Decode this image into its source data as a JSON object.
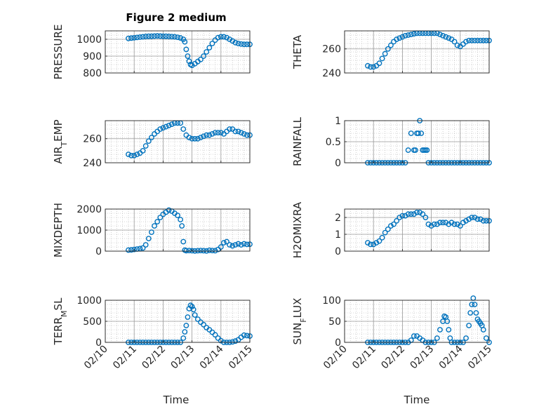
{
  "figure_title": "Figure 2 medium",
  "chart_data": [
    {
      "type": "scatter",
      "ylabel": "PRESSURE",
      "ylim": [
        800,
        1050
      ],
      "yticks": [
        800,
        900,
        1000
      ],
      "xlim": [
        0,
        5
      ],
      "xticks": [
        "02/10",
        "02/11",
        "02/12",
        "02/13",
        "02/14",
        "02/15"
      ],
      "grid": true,
      "marker": "circle-open",
      "series": [
        {
          "x": [
            0.8,
            0.9,
            1.0,
            1.1,
            1.2,
            1.3,
            1.4,
            1.5,
            1.6,
            1.7,
            1.8,
            1.9,
            2.0,
            2.1,
            2.2,
            2.3,
            2.4,
            2.5,
            2.6,
            2.7,
            2.75,
            2.8,
            2.85,
            2.9,
            2.95,
            3.0,
            3.1,
            3.2,
            3.3,
            3.4,
            3.5,
            3.6,
            3.7,
            3.8,
            3.9,
            4.0,
            4.1,
            4.2,
            4.3,
            4.4,
            4.5,
            4.6,
            4.7,
            4.8,
            4.9,
            5.0
          ],
          "y": [
            1005,
            1007,
            1009,
            1011,
            1013,
            1015,
            1017,
            1018,
            1018,
            1019,
            1020,
            1019,
            1018,
            1018,
            1017,
            1016,
            1015,
            1012,
            1008,
            1000,
            985,
            940,
            900,
            870,
            850,
            845,
            855,
            868,
            880,
            900,
            925,
            950,
            975,
            995,
            1010,
            1015,
            1015,
            1010,
            1000,
            990,
            980,
            975,
            972,
            970,
            970,
            970
          ]
        }
      ]
    },
    {
      "type": "scatter",
      "ylabel": "THETA",
      "ylim": [
        240,
        275
      ],
      "yticks": [
        240,
        260
      ],
      "xlim": [
        0,
        5
      ],
      "xticks": [
        "02/10",
        "02/11",
        "02/12",
        "02/13",
        "02/14",
        "02/15"
      ],
      "grid": true,
      "marker": "circle-open",
      "series": [
        {
          "x": [
            0.8,
            0.9,
            1.0,
            1.1,
            1.2,
            1.3,
            1.4,
            1.5,
            1.6,
            1.7,
            1.8,
            1.9,
            2.0,
            2.1,
            2.2,
            2.3,
            2.4,
            2.5,
            2.6,
            2.7,
            2.8,
            2.9,
            3.0,
            3.1,
            3.2,
            3.3,
            3.4,
            3.5,
            3.6,
            3.7,
            3.8,
            3.9,
            4.0,
            4.1,
            4.2,
            4.3,
            4.4,
            4.5,
            4.6,
            4.7,
            4.8,
            4.9,
            5.0
          ],
          "y": [
            246,
            245,
            245,
            246,
            248,
            252,
            256,
            260,
            263,
            266,
            268,
            269,
            270,
            271,
            271.5,
            272,
            272.5,
            273,
            273,
            273,
            273,
            273,
            273,
            273,
            273,
            272,
            271,
            270,
            269,
            268,
            266,
            263,
            262,
            264,
            266,
            267,
            267,
            267,
            267,
            267,
            267,
            267,
            267
          ]
        }
      ]
    },
    {
      "type": "scatter",
      "ylabel": "AIR_TEMP",
      "ylim": [
        240,
        275
      ],
      "yticks": [
        240,
        260
      ],
      "xlim": [
        0,
        5
      ],
      "xticks": [
        "02/10",
        "02/11",
        "02/12",
        "02/13",
        "02/14",
        "02/15"
      ],
      "grid": true,
      "marker": "circle-open",
      "series": [
        {
          "x": [
            0.8,
            0.9,
            1.0,
            1.1,
            1.2,
            1.3,
            1.4,
            1.5,
            1.6,
            1.7,
            1.8,
            1.9,
            2.0,
            2.1,
            2.2,
            2.3,
            2.4,
            2.5,
            2.6,
            2.7,
            2.8,
            2.9,
            3.0,
            3.1,
            3.2,
            3.3,
            3.4,
            3.5,
            3.6,
            3.7,
            3.8,
            3.9,
            4.0,
            4.1,
            4.2,
            4.3,
            4.4,
            4.5,
            4.6,
            4.7,
            4.8,
            4.9,
            5.0
          ],
          "y": [
            247,
            246,
            246,
            247,
            248,
            250,
            254,
            258,
            261,
            264,
            266,
            268,
            269,
            270,
            271,
            272,
            273,
            273,
            273,
            268,
            263,
            261,
            260,
            260,
            260,
            261,
            262,
            263,
            263,
            264,
            265,
            265,
            265,
            264,
            266,
            268,
            268,
            266,
            266,
            265,
            264,
            263,
            263
          ]
        }
      ]
    },
    {
      "type": "scatter",
      "ylabel": "RAINFALL",
      "ylim": [
        0,
        1
      ],
      "yticks": [
        0,
        0.5,
        1
      ],
      "xlim": [
        0,
        5
      ],
      "xticks": [
        "02/10",
        "02/11",
        "02/12",
        "02/13",
        "02/14",
        "02/15"
      ],
      "grid": true,
      "marker": "circle-open",
      "series": [
        {
          "x": [
            0.8,
            0.9,
            1.0,
            1.1,
            1.2,
            1.3,
            1.4,
            1.5,
            1.6,
            1.7,
            1.8,
            1.9,
            2.0,
            2.1,
            2.2,
            2.3,
            2.4,
            2.45,
            2.5,
            2.55,
            2.6,
            2.65,
            2.7,
            2.75,
            2.8,
            2.85,
            2.9,
            3.0,
            3.1,
            3.2,
            3.3,
            3.4,
            3.5,
            3.6,
            3.7,
            3.8,
            3.9,
            4.0,
            4.1,
            4.2,
            4.3,
            4.4,
            4.5,
            4.6,
            4.7,
            4.8,
            4.9,
            5.0
          ],
          "y": [
            0,
            0,
            0,
            0,
            0,
            0,
            0,
            0,
            0,
            0,
            0,
            0,
            0,
            0,
            0.3,
            0.7,
            0.3,
            0.3,
            0.7,
            0.7,
            1.0,
            0.7,
            0.3,
            0.3,
            0.3,
            0.3,
            0,
            0,
            0,
            0,
            0,
            0,
            0,
            0,
            0,
            0,
            0,
            0,
            0,
            0,
            0,
            0,
            0,
            0,
            0,
            0,
            0,
            0
          ]
        }
      ]
    },
    {
      "type": "scatter",
      "ylabel": "MIXDEPTH",
      "ylim": [
        0,
        2000
      ],
      "yticks": [
        0,
        1000,
        2000
      ],
      "xlim": [
        0,
        5
      ],
      "xticks": [
        "02/10",
        "02/11",
        "02/12",
        "02/13",
        "02/14",
        "02/15"
      ],
      "grid": true,
      "marker": "circle-open",
      "series": [
        {
          "x": [
            0.8,
            0.9,
            1.0,
            1.1,
            1.2,
            1.3,
            1.4,
            1.5,
            1.6,
            1.7,
            1.8,
            1.9,
            2.0,
            2.1,
            2.2,
            2.3,
            2.4,
            2.5,
            2.6,
            2.65,
            2.7,
            2.75,
            2.8,
            2.9,
            3.0,
            3.1,
            3.2,
            3.3,
            3.4,
            3.5,
            3.6,
            3.7,
            3.8,
            3.9,
            4.0,
            4.1,
            4.2,
            4.3,
            4.4,
            4.5,
            4.6,
            4.7,
            4.8,
            4.9,
            5.0
          ],
          "y": [
            50,
            60,
            80,
            100,
            120,
            150,
            300,
            600,
            900,
            1200,
            1400,
            1600,
            1750,
            1850,
            1950,
            1900,
            1800,
            1700,
            1500,
            1200,
            450,
            50,
            20,
            30,
            20,
            10,
            20,
            30,
            20,
            10,
            40,
            30,
            20,
            80,
            200,
            400,
            450,
            300,
            250,
            300,
            350,
            300,
            350,
            320,
            330
          ]
        }
      ]
    },
    {
      "type": "scatter",
      "ylabel": "H2OMIXRA",
      "ylim": [
        0,
        2.5
      ],
      "yticks": [
        0,
        1,
        2
      ],
      "xlim": [
        0,
        5
      ],
      "xticks": [
        "02/10",
        "02/11",
        "02/12",
        "02/13",
        "02/14",
        "02/15"
      ],
      "grid": true,
      "marker": "circle-open",
      "series": [
        {
          "x": [
            0.8,
            0.9,
            1.0,
            1.1,
            1.2,
            1.3,
            1.4,
            1.5,
            1.6,
            1.7,
            1.8,
            1.9,
            2.0,
            2.1,
            2.2,
            2.3,
            2.4,
            2.5,
            2.6,
            2.7,
            2.8,
            2.9,
            3.0,
            3.1,
            3.2,
            3.3,
            3.4,
            3.5,
            3.6,
            3.7,
            3.8,
            3.9,
            4.0,
            4.1,
            4.2,
            4.3,
            4.4,
            4.5,
            4.6,
            4.7,
            4.8,
            4.9,
            5.0
          ],
          "y": [
            0.5,
            0.4,
            0.4,
            0.5,
            0.6,
            0.8,
            1.1,
            1.3,
            1.5,
            1.6,
            1.8,
            2.0,
            2.1,
            2.1,
            2.2,
            2.2,
            2.2,
            2.3,
            2.3,
            2.2,
            2.0,
            1.6,
            1.5,
            1.6,
            1.6,
            1.7,
            1.7,
            1.7,
            1.6,
            1.7,
            1.6,
            1.6,
            1.5,
            1.7,
            1.8,
            1.9,
            2.0,
            2.0,
            1.9,
            1.9,
            1.8,
            1.8,
            1.8
          ]
        }
      ]
    },
    {
      "type": "scatter",
      "ylabel": "TERR_MSL",
      "ylim": [
        0,
        1000
      ],
      "yticks": [
        0,
        500,
        1000
      ],
      "xlim": [
        0,
        5
      ],
      "xticks": [
        "02/10",
        "02/11",
        "02/12",
        "02/13",
        "02/14",
        "02/15"
      ],
      "grid": true,
      "marker": "circle-open",
      "series": [
        {
          "x": [
            0.8,
            0.9,
            1.0,
            1.1,
            1.2,
            1.3,
            1.4,
            1.5,
            1.6,
            1.7,
            1.8,
            1.9,
            2.0,
            2.1,
            2.2,
            2.3,
            2.4,
            2.5,
            2.6,
            2.7,
            2.75,
            2.8,
            2.85,
            2.9,
            2.95,
            3.0,
            3.05,
            3.1,
            3.2,
            3.3,
            3.4,
            3.5,
            3.6,
            3.7,
            3.8,
            3.9,
            4.0,
            4.1,
            4.2,
            4.3,
            4.4,
            4.5,
            4.6,
            4.7,
            4.8,
            4.9,
            5.0
          ],
          "y": [
            0,
            0,
            0,
            0,
            0,
            0,
            0,
            0,
            0,
            0,
            0,
            0,
            0,
            0,
            0,
            0,
            0,
            0,
            0,
            100,
            250,
            400,
            600,
            800,
            880,
            850,
            780,
            650,
            550,
            480,
            420,
            350,
            300,
            240,
            180,
            100,
            40,
            0,
            0,
            0,
            10,
            30,
            60,
            120,
            170,
            160,
            150
          ]
        }
      ]
    },
    {
      "type": "scatter",
      "ylabel": "SUN_FLUX",
      "ylim": [
        0,
        100
      ],
      "yticks": [
        0,
        50,
        100
      ],
      "xlim": [
        0,
        5
      ],
      "xticks": [
        "02/10",
        "02/11",
        "02/12",
        "02/13",
        "02/14",
        "02/15"
      ],
      "grid": true,
      "marker": "circle-open",
      "series": [
        {
          "x": [
            0.8,
            0.9,
            1.0,
            1.1,
            1.2,
            1.3,
            1.4,
            1.5,
            1.6,
            1.7,
            1.8,
            1.9,
            2.0,
            2.1,
            2.2,
            2.3,
            2.4,
            2.5,
            2.6,
            2.7,
            2.8,
            2.9,
            3.0,
            3.1,
            3.2,
            3.3,
            3.4,
            3.45,
            3.5,
            3.55,
            3.6,
            3.65,
            3.7,
            3.8,
            3.9,
            4.0,
            4.1,
            4.2,
            4.3,
            4.35,
            4.4,
            4.45,
            4.5,
            4.55,
            4.6,
            4.65,
            4.7,
            4.75,
            4.8,
            4.9,
            5.0
          ],
          "y": [
            0,
            0,
            0,
            0,
            0,
            0,
            0,
            0,
            0,
            0,
            0,
            0,
            0,
            0,
            0,
            5,
            15,
            15,
            10,
            5,
            0,
            0,
            0,
            0,
            10,
            30,
            50,
            62,
            60,
            50,
            30,
            10,
            0,
            0,
            0,
            0,
            0,
            10,
            40,
            70,
            90,
            105,
            90,
            70,
            55,
            50,
            45,
            40,
            30,
            10,
            0
          ]
        }
      ]
    }
  ],
  "xlabel": "Time",
  "colors": {
    "marker": "#0072BD",
    "axis": "#262626",
    "grid": "#b0b0b0"
  }
}
